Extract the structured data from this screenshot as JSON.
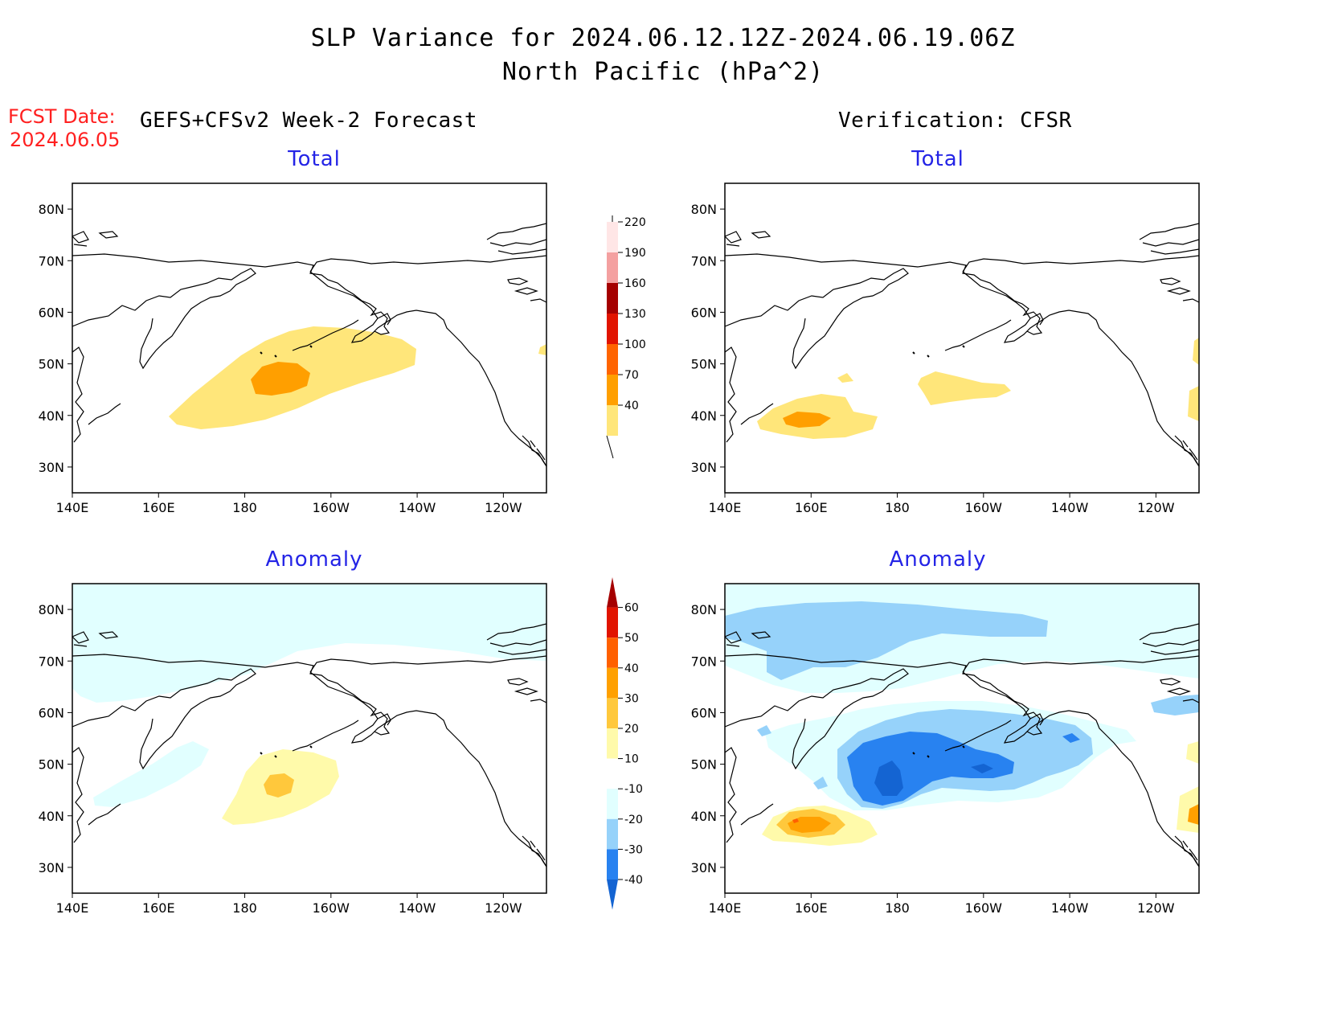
{
  "header": {
    "title_line1": "SLP Variance for 2024.06.12.12Z-2024.06.19.06Z",
    "title_line2": "North Pacific (hPa^2)",
    "fcst_date_label": "FCST Date:",
    "fcst_date_value": "2024.06.05",
    "left_column_title": "GEFS+CFSv2 Week-2 Forecast",
    "right_column_title": "Verification: CFSR"
  },
  "panels": {
    "forecast_total": {
      "title": "Total"
    },
    "verification_total": {
      "title": "Total"
    },
    "forecast_anomaly": {
      "title": "Anomaly"
    },
    "verification_anomaly": {
      "title": "Anomaly"
    }
  },
  "axes": {
    "lon_labels": [
      "140E",
      "160E",
      "180",
      "160W",
      "140W",
      "120W"
    ],
    "lat_labels": [
      "80N",
      "70N",
      "60N",
      "50N",
      "40N",
      "30N"
    ],
    "lon_range_deg_east": [
      140,
      250
    ],
    "lat_range": [
      25,
      85
    ]
  },
  "colorbars": {
    "total": {
      "ticks": [
        "40",
        "70",
        "100",
        "130",
        "160",
        "190",
        "220"
      ],
      "colors": [
        "#ffe67a",
        "#ff9f00",
        "#ff6400",
        "#e11400",
        "#a50000",
        "#f4a0a0",
        "#ffe6e6"
      ]
    },
    "anomaly": {
      "ticks": [
        "-40",
        "-30",
        "-20",
        "-10",
        "10",
        "20",
        "30",
        "40",
        "50",
        "60"
      ],
      "colors": [
        "#1464d2",
        "#2882f0",
        "#96d2fa",
        "#e1ffff",
        "#ffffff",
        "#fffaaa",
        "#ffc83c",
        "#ffa000",
        "#ff6000",
        "#e11400",
        "#a50000"
      ]
    }
  }
}
